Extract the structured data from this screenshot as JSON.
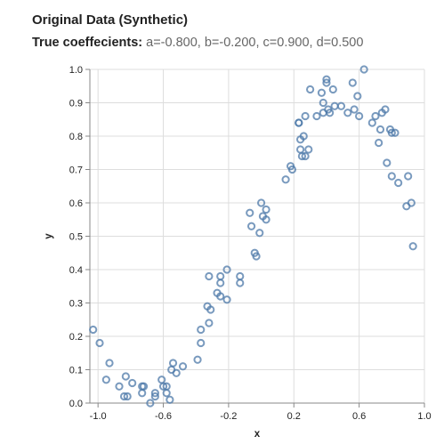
{
  "chart_data": {
    "type": "scatter",
    "title": "Original Data (Synthetic)",
    "subtitle_label": "True coeffecients:",
    "subtitle_value": "a=-0.800, b=-0.200, c=0.900, d=0.500",
    "xlabel": "x",
    "ylabel": "y",
    "xlim": [
      -1.05,
      1.0
    ],
    "ylim": [
      0.0,
      1.0
    ],
    "xticks": [
      -1.0,
      -0.6,
      -0.2,
      0.2,
      0.6,
      1.0
    ],
    "xtick_labels": [
      "-1.0",
      "-0.6",
      "-0.2",
      "0.2",
      "0.6",
      "1.0"
    ],
    "yticks": [
      0.0,
      0.1,
      0.2,
      0.3,
      0.4,
      0.5,
      0.6,
      0.7,
      0.8,
      0.9,
      1.0
    ],
    "ytick_labels": [
      "0.0",
      "0.1",
      "0.2",
      "0.3",
      "0.4",
      "0.5",
      "0.6",
      "0.7",
      "0.8",
      "0.9",
      "1.0"
    ],
    "grid": true,
    "marker_color": "#4c78a8",
    "points": [
      [
        -1.03,
        0.22
      ],
      [
        -0.99,
        0.18
      ],
      [
        -0.95,
        0.07
      ],
      [
        -0.93,
        0.12
      ],
      [
        -0.87,
        0.05
      ],
      [
        -0.84,
        0.02
      ],
      [
        -0.83,
        0.08
      ],
      [
        -0.82,
        0.02
      ],
      [
        -0.79,
        0.06
      ],
      [
        -0.73,
        0.05
      ],
      [
        -0.73,
        0.03
      ],
      [
        -0.72,
        0.05
      ],
      [
        -0.68,
        0.0
      ],
      [
        -0.65,
        0.03
      ],
      [
        -0.65,
        0.02
      ],
      [
        -0.61,
        0.07
      ],
      [
        -0.6,
        0.05
      ],
      [
        -0.58,
        0.05
      ],
      [
        -0.58,
        0.03
      ],
      [
        -0.56,
        0.01
      ],
      [
        -0.55,
        0.1
      ],
      [
        -0.54,
        0.12
      ],
      [
        -0.52,
        0.09
      ],
      [
        -0.48,
        0.11
      ],
      [
        -0.39,
        0.13
      ],
      [
        -0.37,
        0.18
      ],
      [
        -0.37,
        0.22
      ],
      [
        -0.33,
        0.29
      ],
      [
        -0.32,
        0.38
      ],
      [
        -0.32,
        0.24
      ],
      [
        -0.31,
        0.28
      ],
      [
        -0.27,
        0.33
      ],
      [
        -0.25,
        0.38
      ],
      [
        -0.25,
        0.36
      ],
      [
        -0.25,
        0.32
      ],
      [
        -0.21,
        0.4
      ],
      [
        -0.21,
        0.31
      ],
      [
        -0.13,
        0.38
      ],
      [
        -0.13,
        0.36
      ],
      [
        -0.07,
        0.57
      ],
      [
        -0.06,
        0.53
      ],
      [
        -0.04,
        0.45
      ],
      [
        -0.03,
        0.44
      ],
      [
        -0.01,
        0.51
      ],
      [
        0.0,
        0.6
      ],
      [
        0.01,
        0.56
      ],
      [
        0.03,
        0.55
      ],
      [
        0.03,
        0.58
      ],
      [
        0.15,
        0.67
      ],
      [
        0.18,
        0.71
      ],
      [
        0.19,
        0.7
      ],
      [
        0.23,
        0.84
      ],
      [
        0.23,
        0.84
      ],
      [
        0.24,
        0.79
      ],
      [
        0.24,
        0.76
      ],
      [
        0.25,
        0.74
      ],
      [
        0.26,
        0.8
      ],
      [
        0.27,
        0.86
      ],
      [
        0.27,
        0.74
      ],
      [
        0.29,
        0.76
      ],
      [
        0.3,
        0.94
      ],
      [
        0.34,
        0.86
      ],
      [
        0.37,
        0.93
      ],
      [
        0.38,
        0.87
      ],
      [
        0.38,
        0.9
      ],
      [
        0.4,
        0.97
      ],
      [
        0.4,
        0.96
      ],
      [
        0.41,
        0.88
      ],
      [
        0.42,
        0.87
      ],
      [
        0.44,
        0.94
      ],
      [
        0.45,
        0.89
      ],
      [
        0.49,
        0.89
      ],
      [
        0.53,
        0.87
      ],
      [
        0.56,
        0.96
      ],
      [
        0.57,
        0.88
      ],
      [
        0.59,
        0.92
      ],
      [
        0.6,
        0.86
      ],
      [
        0.63,
        1.0
      ],
      [
        0.68,
        0.84
      ],
      [
        0.7,
        0.86
      ],
      [
        0.72,
        0.78
      ],
      [
        0.73,
        0.82
      ],
      [
        0.74,
        0.87
      ],
      [
        0.76,
        0.88
      ],
      [
        0.77,
        0.72
      ],
      [
        0.79,
        0.82
      ],
      [
        0.8,
        0.81
      ],
      [
        0.8,
        0.68
      ],
      [
        0.82,
        0.81
      ],
      [
        0.84,
        0.66
      ],
      [
        0.89,
        0.59
      ],
      [
        0.9,
        0.68
      ],
      [
        0.92,
        0.6
      ],
      [
        0.93,
        0.47
      ]
    ]
  }
}
